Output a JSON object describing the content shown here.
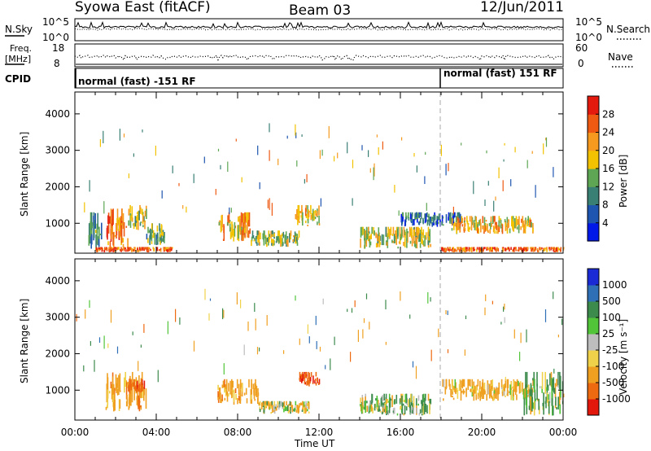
{
  "header": {
    "station": "Syowa East (fitACF)",
    "beam": "Beam 03",
    "date": "12/Jun/2011"
  },
  "top_panels": {
    "nsky": {
      "label": "N.Sky",
      "ticks": [
        "10^5",
        "10^0"
      ]
    },
    "nsearch": {
      "label": "N.Search",
      "ticks": [
        "10^5",
        "10^0"
      ]
    },
    "freq": {
      "label_line1": "Freq.",
      "label_line2": "[MHz]",
      "ticks": [
        "18",
        "8"
      ]
    },
    "nave": {
      "label": "Nave",
      "ticks": [
        "60",
        "0"
      ]
    },
    "cpid": {
      "label": "CPID",
      "segment_1": "normal (fast) -151 RF",
      "segment_2": "normal (fast) 151 RF"
    }
  },
  "axes": {
    "x_ticks": [
      "00:00",
      "04:00",
      "08:00",
      "12:00",
      "16:00",
      "20:00",
      "00:00"
    ],
    "x_label": "Time UT",
    "y_ticks": [
      "1000",
      "2000",
      "3000",
      "4000"
    ],
    "y_label": "Slant Range [km]"
  },
  "colorbars": {
    "power": {
      "label": "Power [dB]",
      "ticks": [
        "4",
        "8",
        "12",
        "16",
        "20",
        "24",
        "28"
      ],
      "colors": [
        "#0018e8",
        "#1e55b0",
        "#3a7f74",
        "#5fa654",
        "#f2c200",
        "#f59a1e",
        "#ee5a12",
        "#e41a0e"
      ]
    },
    "velocity": {
      "label": "Velocity [m s⁻¹]",
      "ticks": [
        "1000",
        "500",
        "100",
        "25",
        "-25",
        "-100",
        "-500",
        "-1000"
      ],
      "colors": [
        "#1a2bd6",
        "#2f6fb6",
        "#3c8a4c",
        "#52c43a",
        "#bdbdbd",
        "#f0d24a",
        "#f0a020",
        "#ee6a10",
        "#e3180c"
      ]
    }
  },
  "chart_data": [
    {
      "type": "heatmap",
      "title": "Power [dB]",
      "xlabel": "Time UT",
      "ylabel": "Slant Range [km]",
      "x_range_hours": [
        0,
        24
      ],
      "ylim": [
        180,
        4600
      ],
      "colorscale_range": [
        0,
        30
      ],
      "regions": [
        {
          "t0": 0.6,
          "t1": 1.3,
          "r0": 200,
          "r1": 1300,
          "dB": 10
        },
        {
          "t0": 1.5,
          "t1": 2.6,
          "r0": 300,
          "r1": 1400,
          "dB": 22
        },
        {
          "t0": 2.6,
          "t1": 3.5,
          "r0": 800,
          "r1": 1500,
          "dB": 16
        },
        {
          "t0": 3.5,
          "t1": 4.4,
          "r0": 400,
          "r1": 1000,
          "dB": 12
        },
        {
          "t0": 1.0,
          "t1": 4.8,
          "r0": 200,
          "r1": 350,
          "dB": 24
        },
        {
          "t0": 7.0,
          "t1": 8.6,
          "r0": 500,
          "r1": 1300,
          "dB": 20
        },
        {
          "t0": 8.6,
          "t1": 11.0,
          "r0": 350,
          "r1": 800,
          "dB": 14
        },
        {
          "t0": 10.8,
          "t1": 12.0,
          "r0": 900,
          "r1": 1500,
          "dB": 18
        },
        {
          "t0": 14.0,
          "t1": 17.5,
          "r0": 300,
          "r1": 900,
          "dB": 16
        },
        {
          "t0": 16.0,
          "t1": 19.0,
          "r0": 900,
          "r1": 1300,
          "dB": 8
        },
        {
          "t0": 18.5,
          "t1": 22.5,
          "r0": 700,
          "r1": 1200,
          "dB": 18
        },
        {
          "t0": 18.0,
          "t1": 24.0,
          "r0": 200,
          "r1": 350,
          "dB": 24
        }
      ]
    },
    {
      "type": "heatmap",
      "title": "Velocity [m s⁻¹]",
      "xlabel": "Time UT",
      "ylabel": "Slant Range [km]",
      "x_range_hours": [
        0,
        24
      ],
      "ylim": [
        180,
        4600
      ],
      "colorscale_range": [
        -1000,
        1000
      ],
      "regions": [
        {
          "t0": 1.5,
          "t1": 3.5,
          "r0": 400,
          "r1": 1500,
          "v": -300
        },
        {
          "t0": 2.6,
          "t1": 3.4,
          "r0": 900,
          "r1": 1300,
          "v": -800
        },
        {
          "t0": 7.0,
          "t1": 9.0,
          "r0": 600,
          "r1": 1300,
          "v": -300
        },
        {
          "t0": 9.0,
          "t1": 11.5,
          "r0": 350,
          "r1": 700,
          "v": -60
        },
        {
          "t0": 11.0,
          "t1": 12.0,
          "r0": 1100,
          "r1": 1500,
          "v": -900
        },
        {
          "t0": 14.0,
          "t1": 17.5,
          "r0": 300,
          "r1": 900,
          "v": 100
        },
        {
          "t0": 18.0,
          "t1": 22.5,
          "r0": 700,
          "r1": 1300,
          "v": -200
        },
        {
          "t0": 22.0,
          "t1": 24.0,
          "r0": 300,
          "r1": 1500,
          "v": 60
        }
      ]
    }
  ]
}
